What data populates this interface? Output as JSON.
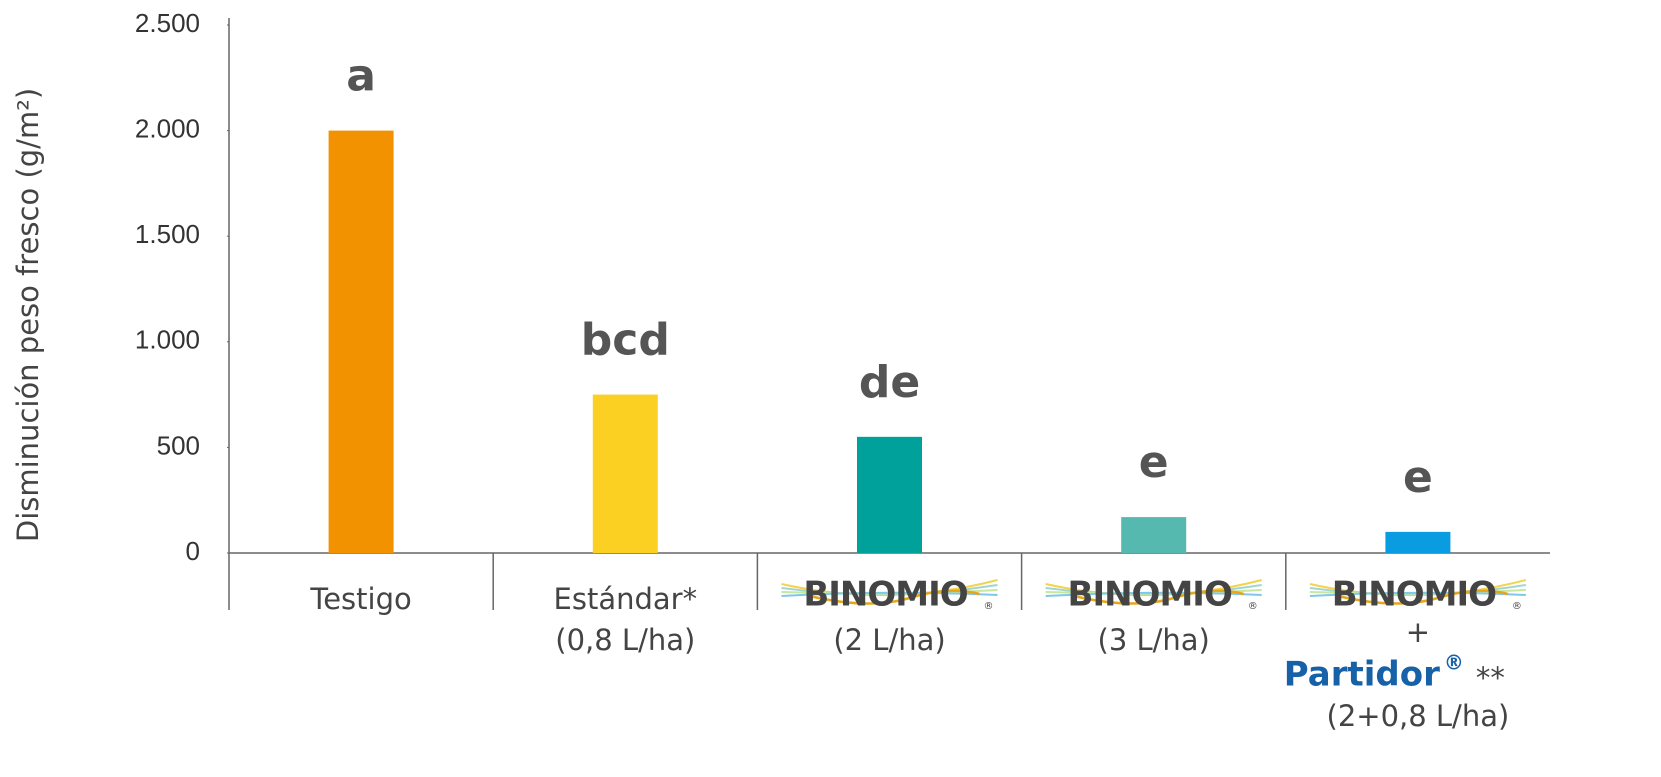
{
  "chart_data": {
    "type": "bar",
    "y_axis_label": "Disminución peso fresco (g/m²)",
    "categories": [
      "Testigo",
      "Estándar*",
      "BINOMIO",
      "BINOMIO",
      "BINOMIO"
    ],
    "category_sublabels": [
      null,
      "(0,8 L/ha)",
      "(2 L/ha)",
      "(3 L/ha)",
      "(2+0,8 L/ha)"
    ],
    "category_extra": [
      null,
      null,
      null,
      null,
      {
        "plus": "+",
        "brand": "Partidor",
        "reg": "®",
        "note": "**"
      }
    ],
    "logo_mark": "®",
    "values": [
      2000,
      750,
      550,
      170,
      100
    ],
    "significance_labels": [
      "a",
      "bcd",
      "de",
      "e",
      "e"
    ],
    "colors": [
      "#f39200",
      "#fcd022",
      "#00a19a",
      "#55b9b0",
      "#0a9ce0"
    ],
    "ylim": [
      0,
      2500
    ],
    "yticks": [
      0,
      500,
      {
        "value": 1000,
        "label": "1.000"
      },
      {
        "value": 1500,
        "label": "1.500"
      },
      {
        "value": 2000,
        "label": "2.000"
      },
      {
        "value": 2500,
        "label": "2.500"
      }
    ],
    "grid": false
  }
}
